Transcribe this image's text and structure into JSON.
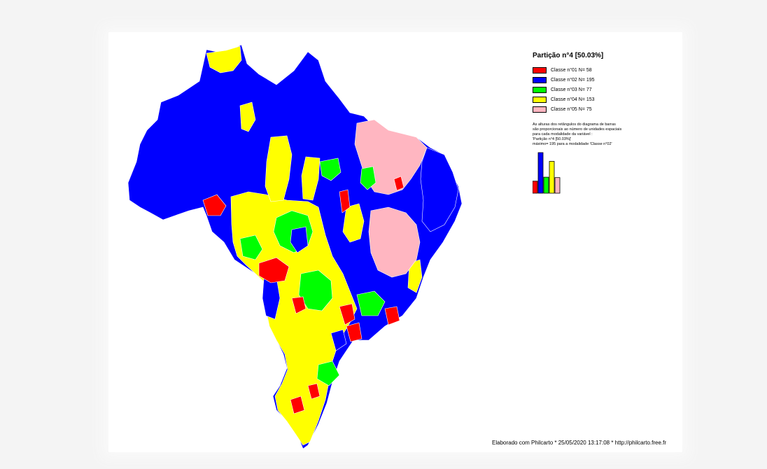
{
  "legend": {
    "title": "Partição n°4 [50.03%]",
    "classes": [
      {
        "label": "Classe n°01 N= 58",
        "n": 58,
        "color": "#ff0000"
      },
      {
        "label": "Classe n°02 N= 195",
        "n": 195,
        "color": "#0000ff"
      },
      {
        "label": "Classe n°03 N= 77",
        "n": 77,
        "color": "#00ff00"
      },
      {
        "label": "Classe n°04 N= 153",
        "n": 153,
        "color": "#ffff00"
      },
      {
        "label": "Classe n°05 N= 75",
        "n": 75,
        "color": "#ffb6c1"
      }
    ],
    "note_lines": [
      "As alturas dos retângulos do diagrama de barras",
      "são proporcionais ao número de unidades espaciais",
      "para cada modalidade da variável :",
      "'Partição n°4 [50.03%]'",
      "máximo= 195 para a modalidade 'Classe n°02'"
    ]
  },
  "credit": "Elaborado com Philcarto * 25/05/2020 13:17:08 * http://philcarto.free.fr",
  "map_colors": {
    "red": "#ff0000",
    "blue": "#0000ff",
    "green": "#00ff00",
    "yellow": "#ffff00",
    "pink": "#ffb6c1",
    "border": "#ffffff"
  }
}
